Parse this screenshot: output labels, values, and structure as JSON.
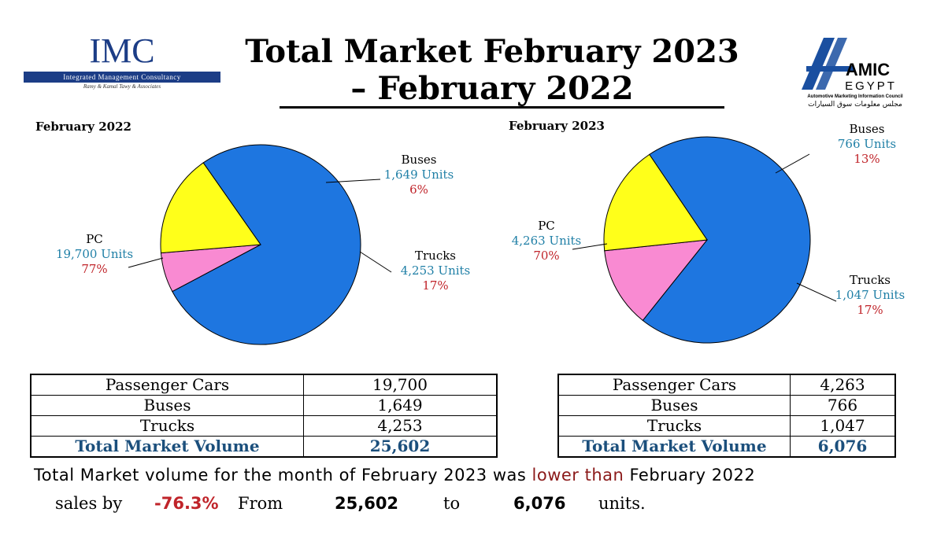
{
  "header": {
    "title_line1": "Total Market February 2023",
    "title_line2": "– February 2022",
    "imc_logo": {
      "name": "IMC",
      "bar_text": "Integrated Management Consultancy",
      "sub_text": "Ramy & Kamal Tawy & Associates"
    },
    "amic_logo": {
      "name": "AMIC",
      "sub": "EGYPT",
      "tagline": "Automotive Marketing Information Council",
      "arabic": "مجلس معلومات سوق السيارات"
    }
  },
  "colors": {
    "PC": "#1e76e0",
    "Buses": "#f98ad2",
    "Trucks": "#ffff1a",
    "units": "#1f7fa6",
    "pct": "#c0242a",
    "total": "#1b4f7c"
  },
  "chart_data": [
    {
      "type": "pie",
      "title": "February 2022",
      "slices": [
        {
          "label": "PC",
          "value": 19700,
          "units_text": "19,700 Units",
          "pct_text": "77%"
        },
        {
          "label": "Buses",
          "value": 1649,
          "units_text": "1,649  Units",
          "pct_text": "6%"
        },
        {
          "label": "Trucks",
          "value": 4253,
          "units_text": "4,253 Units",
          "pct_text": "17%"
        }
      ]
    },
    {
      "type": "pie",
      "title": "February 2023",
      "slices": [
        {
          "label": "PC",
          "value": 4263,
          "units_text": "4,263 Units",
          "pct_text": "70%"
        },
        {
          "label": "Buses",
          "value": 766,
          "units_text": "766 Units",
          "pct_text": "13%"
        },
        {
          "label": "Trucks",
          "value": 1047,
          "units_text": "1,047 Units",
          "pct_text": "17%"
        }
      ]
    }
  ],
  "tables": [
    {
      "rows": [
        {
          "label": "Passenger Cars",
          "value": "19,700"
        },
        {
          "label": "Buses",
          "value": "1,649"
        },
        {
          "label": "Trucks",
          "value": "4,253"
        }
      ],
      "total": {
        "label": "Total Market Volume",
        "value": "25,602"
      }
    },
    {
      "rows": [
        {
          "label": "Passenger Cars",
          "value": "4,263"
        },
        {
          "label": "Buses",
          "value": "766"
        },
        {
          "label": "Trucks",
          "value": "1,047"
        }
      ],
      "total": {
        "label": "Total Market Volume",
        "value": "6,076"
      }
    }
  ],
  "summary": {
    "line1_a": "Total Market volume for the month of February 2023 was ",
    "line1_red": "lower than",
    "line1_b": " February 2022",
    "sales_by": "sales by",
    "pct": "-76.3%",
    "from": "From",
    "from_value": "25,602",
    "to": "to",
    "to_value": "6,076",
    "units": "units."
  }
}
